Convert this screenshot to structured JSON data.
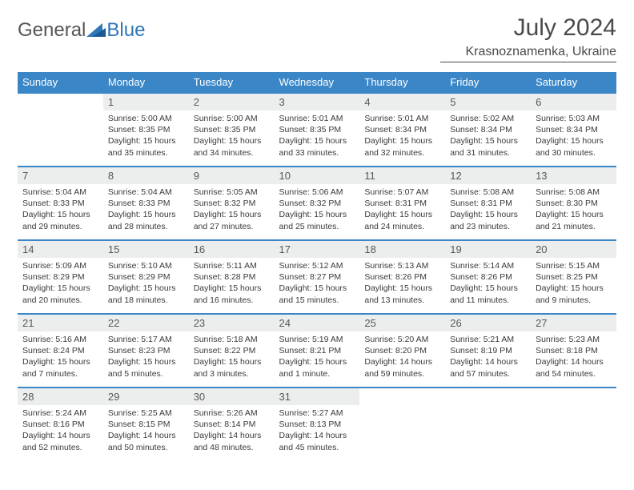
{
  "brand": {
    "general": "General",
    "blue": "Blue"
  },
  "title": "July 2024",
  "location": "Krasnoznamenka, Ukraine",
  "colors": {
    "header_bg": "#3b86c7",
    "header_text": "#ffffff",
    "daynum_bg": "#eceded",
    "border": "#3b86c7",
    "body_text": "#3a3a3a",
    "brand_gray": "#555555",
    "brand_blue": "#2e77b8"
  },
  "dayNames": [
    "Sunday",
    "Monday",
    "Tuesday",
    "Wednesday",
    "Thursday",
    "Friday",
    "Saturday"
  ],
  "weeks": [
    [
      {
        "n": "",
        "sr": "",
        "ss": "",
        "dl": ""
      },
      {
        "n": "1",
        "sr": "Sunrise: 5:00 AM",
        "ss": "Sunset: 8:35 PM",
        "dl": "Daylight: 15 hours and 35 minutes."
      },
      {
        "n": "2",
        "sr": "Sunrise: 5:00 AM",
        "ss": "Sunset: 8:35 PM",
        "dl": "Daylight: 15 hours and 34 minutes."
      },
      {
        "n": "3",
        "sr": "Sunrise: 5:01 AM",
        "ss": "Sunset: 8:35 PM",
        "dl": "Daylight: 15 hours and 33 minutes."
      },
      {
        "n": "4",
        "sr": "Sunrise: 5:01 AM",
        "ss": "Sunset: 8:34 PM",
        "dl": "Daylight: 15 hours and 32 minutes."
      },
      {
        "n": "5",
        "sr": "Sunrise: 5:02 AM",
        "ss": "Sunset: 8:34 PM",
        "dl": "Daylight: 15 hours and 31 minutes."
      },
      {
        "n": "6",
        "sr": "Sunrise: 5:03 AM",
        "ss": "Sunset: 8:34 PM",
        "dl": "Daylight: 15 hours and 30 minutes."
      }
    ],
    [
      {
        "n": "7",
        "sr": "Sunrise: 5:04 AM",
        "ss": "Sunset: 8:33 PM",
        "dl": "Daylight: 15 hours and 29 minutes."
      },
      {
        "n": "8",
        "sr": "Sunrise: 5:04 AM",
        "ss": "Sunset: 8:33 PM",
        "dl": "Daylight: 15 hours and 28 minutes."
      },
      {
        "n": "9",
        "sr": "Sunrise: 5:05 AM",
        "ss": "Sunset: 8:32 PM",
        "dl": "Daylight: 15 hours and 27 minutes."
      },
      {
        "n": "10",
        "sr": "Sunrise: 5:06 AM",
        "ss": "Sunset: 8:32 PM",
        "dl": "Daylight: 15 hours and 25 minutes."
      },
      {
        "n": "11",
        "sr": "Sunrise: 5:07 AM",
        "ss": "Sunset: 8:31 PM",
        "dl": "Daylight: 15 hours and 24 minutes."
      },
      {
        "n": "12",
        "sr": "Sunrise: 5:08 AM",
        "ss": "Sunset: 8:31 PM",
        "dl": "Daylight: 15 hours and 23 minutes."
      },
      {
        "n": "13",
        "sr": "Sunrise: 5:08 AM",
        "ss": "Sunset: 8:30 PM",
        "dl": "Daylight: 15 hours and 21 minutes."
      }
    ],
    [
      {
        "n": "14",
        "sr": "Sunrise: 5:09 AM",
        "ss": "Sunset: 8:29 PM",
        "dl": "Daylight: 15 hours and 20 minutes."
      },
      {
        "n": "15",
        "sr": "Sunrise: 5:10 AM",
        "ss": "Sunset: 8:29 PM",
        "dl": "Daylight: 15 hours and 18 minutes."
      },
      {
        "n": "16",
        "sr": "Sunrise: 5:11 AM",
        "ss": "Sunset: 8:28 PM",
        "dl": "Daylight: 15 hours and 16 minutes."
      },
      {
        "n": "17",
        "sr": "Sunrise: 5:12 AM",
        "ss": "Sunset: 8:27 PM",
        "dl": "Daylight: 15 hours and 15 minutes."
      },
      {
        "n": "18",
        "sr": "Sunrise: 5:13 AM",
        "ss": "Sunset: 8:26 PM",
        "dl": "Daylight: 15 hours and 13 minutes."
      },
      {
        "n": "19",
        "sr": "Sunrise: 5:14 AM",
        "ss": "Sunset: 8:26 PM",
        "dl": "Daylight: 15 hours and 11 minutes."
      },
      {
        "n": "20",
        "sr": "Sunrise: 5:15 AM",
        "ss": "Sunset: 8:25 PM",
        "dl": "Daylight: 15 hours and 9 minutes."
      }
    ],
    [
      {
        "n": "21",
        "sr": "Sunrise: 5:16 AM",
        "ss": "Sunset: 8:24 PM",
        "dl": "Daylight: 15 hours and 7 minutes."
      },
      {
        "n": "22",
        "sr": "Sunrise: 5:17 AM",
        "ss": "Sunset: 8:23 PM",
        "dl": "Daylight: 15 hours and 5 minutes."
      },
      {
        "n": "23",
        "sr": "Sunrise: 5:18 AM",
        "ss": "Sunset: 8:22 PM",
        "dl": "Daylight: 15 hours and 3 minutes."
      },
      {
        "n": "24",
        "sr": "Sunrise: 5:19 AM",
        "ss": "Sunset: 8:21 PM",
        "dl": "Daylight: 15 hours and 1 minute."
      },
      {
        "n": "25",
        "sr": "Sunrise: 5:20 AM",
        "ss": "Sunset: 8:20 PM",
        "dl": "Daylight: 14 hours and 59 minutes."
      },
      {
        "n": "26",
        "sr": "Sunrise: 5:21 AM",
        "ss": "Sunset: 8:19 PM",
        "dl": "Daylight: 14 hours and 57 minutes."
      },
      {
        "n": "27",
        "sr": "Sunrise: 5:23 AM",
        "ss": "Sunset: 8:18 PM",
        "dl": "Daylight: 14 hours and 54 minutes."
      }
    ],
    [
      {
        "n": "28",
        "sr": "Sunrise: 5:24 AM",
        "ss": "Sunset: 8:16 PM",
        "dl": "Daylight: 14 hours and 52 minutes."
      },
      {
        "n": "29",
        "sr": "Sunrise: 5:25 AM",
        "ss": "Sunset: 8:15 PM",
        "dl": "Daylight: 14 hours and 50 minutes."
      },
      {
        "n": "30",
        "sr": "Sunrise: 5:26 AM",
        "ss": "Sunset: 8:14 PM",
        "dl": "Daylight: 14 hours and 48 minutes."
      },
      {
        "n": "31",
        "sr": "Sunrise: 5:27 AM",
        "ss": "Sunset: 8:13 PM",
        "dl": "Daylight: 14 hours and 45 minutes."
      },
      {
        "n": "",
        "sr": "",
        "ss": "",
        "dl": ""
      },
      {
        "n": "",
        "sr": "",
        "ss": "",
        "dl": ""
      },
      {
        "n": "",
        "sr": "",
        "ss": "",
        "dl": ""
      }
    ]
  ]
}
